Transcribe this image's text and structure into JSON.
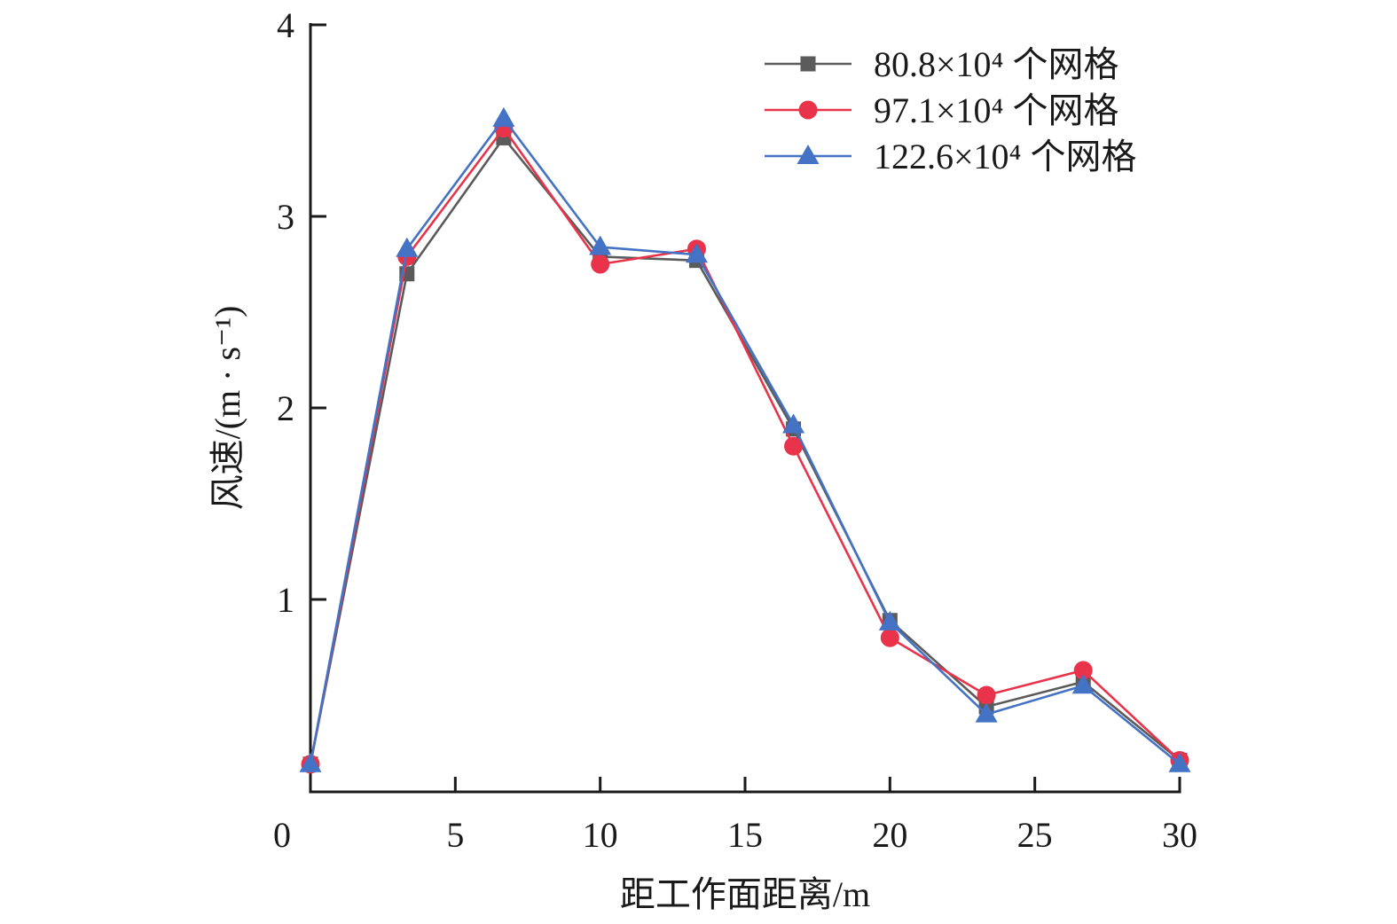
{
  "chart_data": {
    "type": "line",
    "title": "",
    "xlabel": "距工作面距离/m",
    "ylabel": "风速/(m · s⁻¹)",
    "xlim": [
      0,
      30
    ],
    "ylim": [
      0,
      4
    ],
    "xticks": [
      0,
      5,
      10,
      15,
      20,
      25,
      30
    ],
    "yticks": [
      1,
      2,
      3,
      4
    ],
    "grid": false,
    "legend_position": "top-right",
    "x": [
      0,
      3.33,
      6.67,
      10,
      13.33,
      16.67,
      20,
      23.33,
      26.67,
      30
    ],
    "series": [
      {
        "name": "80.8×10⁴ 个网格",
        "marker": "square",
        "color": "#5b5b5b",
        "values": [
          0.14,
          2.7,
          3.41,
          2.79,
          2.77,
          1.89,
          0.89,
          0.44,
          0.57,
          0.16
        ]
      },
      {
        "name": "97.1×10⁴ 个网格",
        "marker": "circle",
        "color": "#e8334a",
        "values": [
          0.14,
          2.79,
          3.46,
          2.75,
          2.83,
          1.8,
          0.8,
          0.5,
          0.63,
          0.16
        ]
      },
      {
        "name": "122.6×10⁴ 个网格",
        "marker": "triangle",
        "color": "#4472c4",
        "values": [
          0.14,
          2.83,
          3.51,
          2.84,
          2.8,
          1.91,
          0.88,
          0.4,
          0.55,
          0.14
        ]
      }
    ]
  }
}
